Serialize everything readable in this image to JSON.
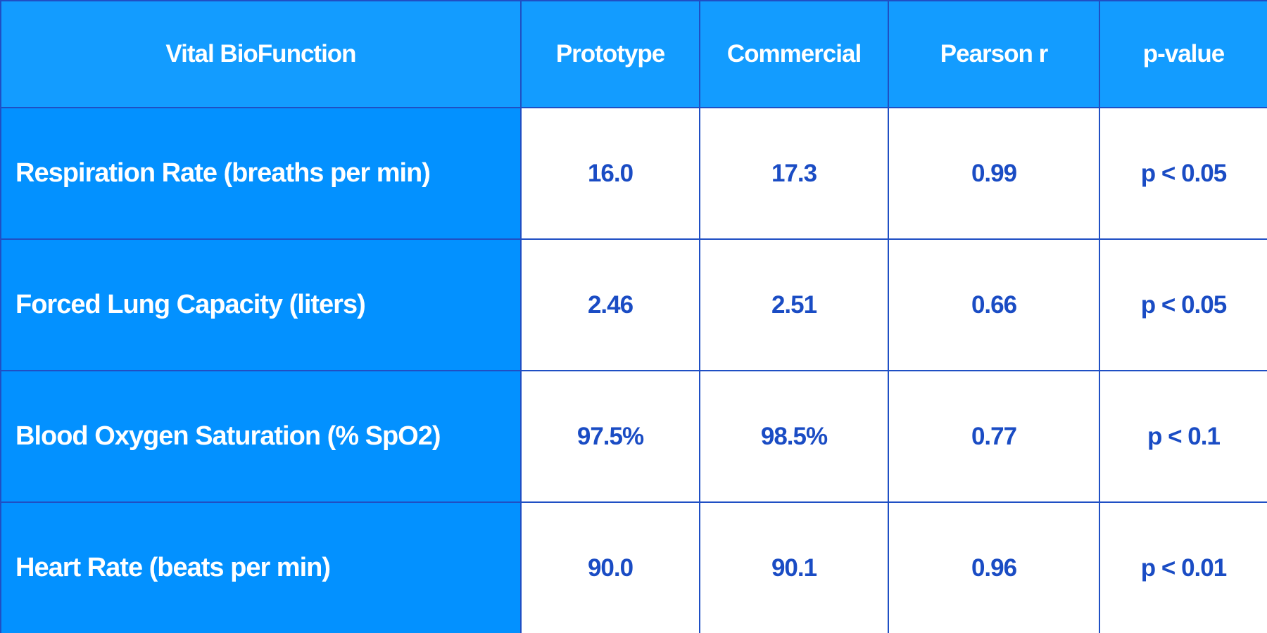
{
  "table": {
    "headers": [
      "Vital BioFunction",
      "Prototype",
      "Commercial",
      "Pearson r",
      "p-value"
    ],
    "rows": [
      {
        "label": "Respiration Rate (breaths per min)",
        "prototype": "16.0",
        "commercial": "17.3",
        "pearson_r": "0.99",
        "p_value": "p < 0.05"
      },
      {
        "label": "Forced Lung Capacity (liters)",
        "prototype": "2.46",
        "commercial": "2.51",
        "pearson_r": "0.66",
        "p_value": "p < 0.05"
      },
      {
        "label": "Blood Oxygen Saturation (% SpO2)",
        "prototype": "97.5%",
        "commercial": "98.5%",
        "pearson_r": "0.77",
        "p_value": "p < 0.1"
      },
      {
        "label": "Heart Rate (beats per min)",
        "prototype": "90.0",
        "commercial": "90.1",
        "pearson_r": "0.96",
        "p_value": "p < 0.01"
      }
    ]
  },
  "colors": {
    "header_bg": "#139cff",
    "label_bg": "#0391ff",
    "border": "#1f4fc4",
    "value_text": "#1a4cc4"
  }
}
